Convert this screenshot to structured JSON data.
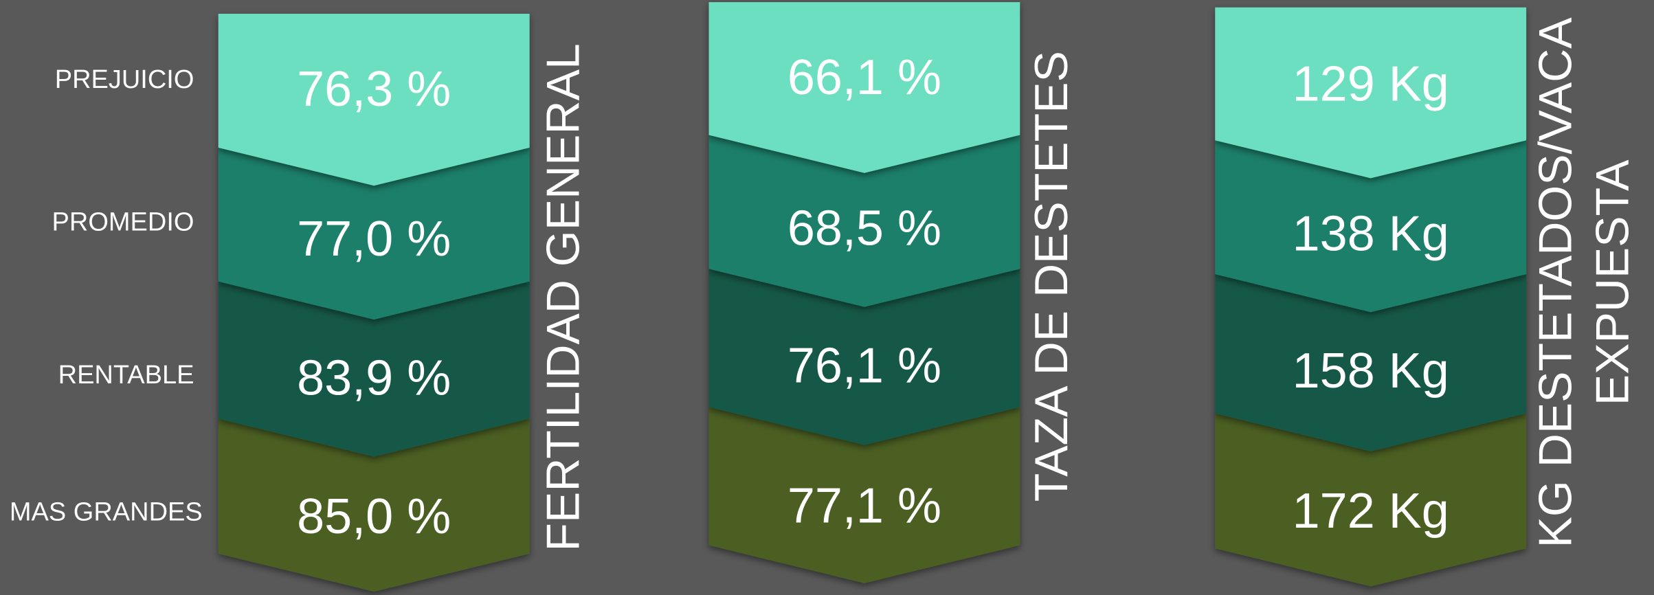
{
  "row_labels": [
    "PREJUICIO",
    "PROMEDIO",
    "RENTABLE",
    "MAS GRANDES"
  ],
  "columns": [
    {
      "title_lines": [
        "FERTILIDAD GENERAL"
      ],
      "values": [
        "76,3 %",
        "77,0 %",
        "83,9 %",
        "85,0 %"
      ]
    },
    {
      "title_lines": [
        "TAZA DE DESTETES"
      ],
      "values": [
        "66,1 %",
        "68,5 %",
        "76,1 %",
        "77,1 %"
      ]
    },
    {
      "title_lines": [
        "KG DESTETADOS/VACA",
        "EXPUESTA"
      ],
      "values": [
        "129 Kg",
        "138 Kg",
        "158 Kg",
        "172 Kg"
      ]
    }
  ]
}
